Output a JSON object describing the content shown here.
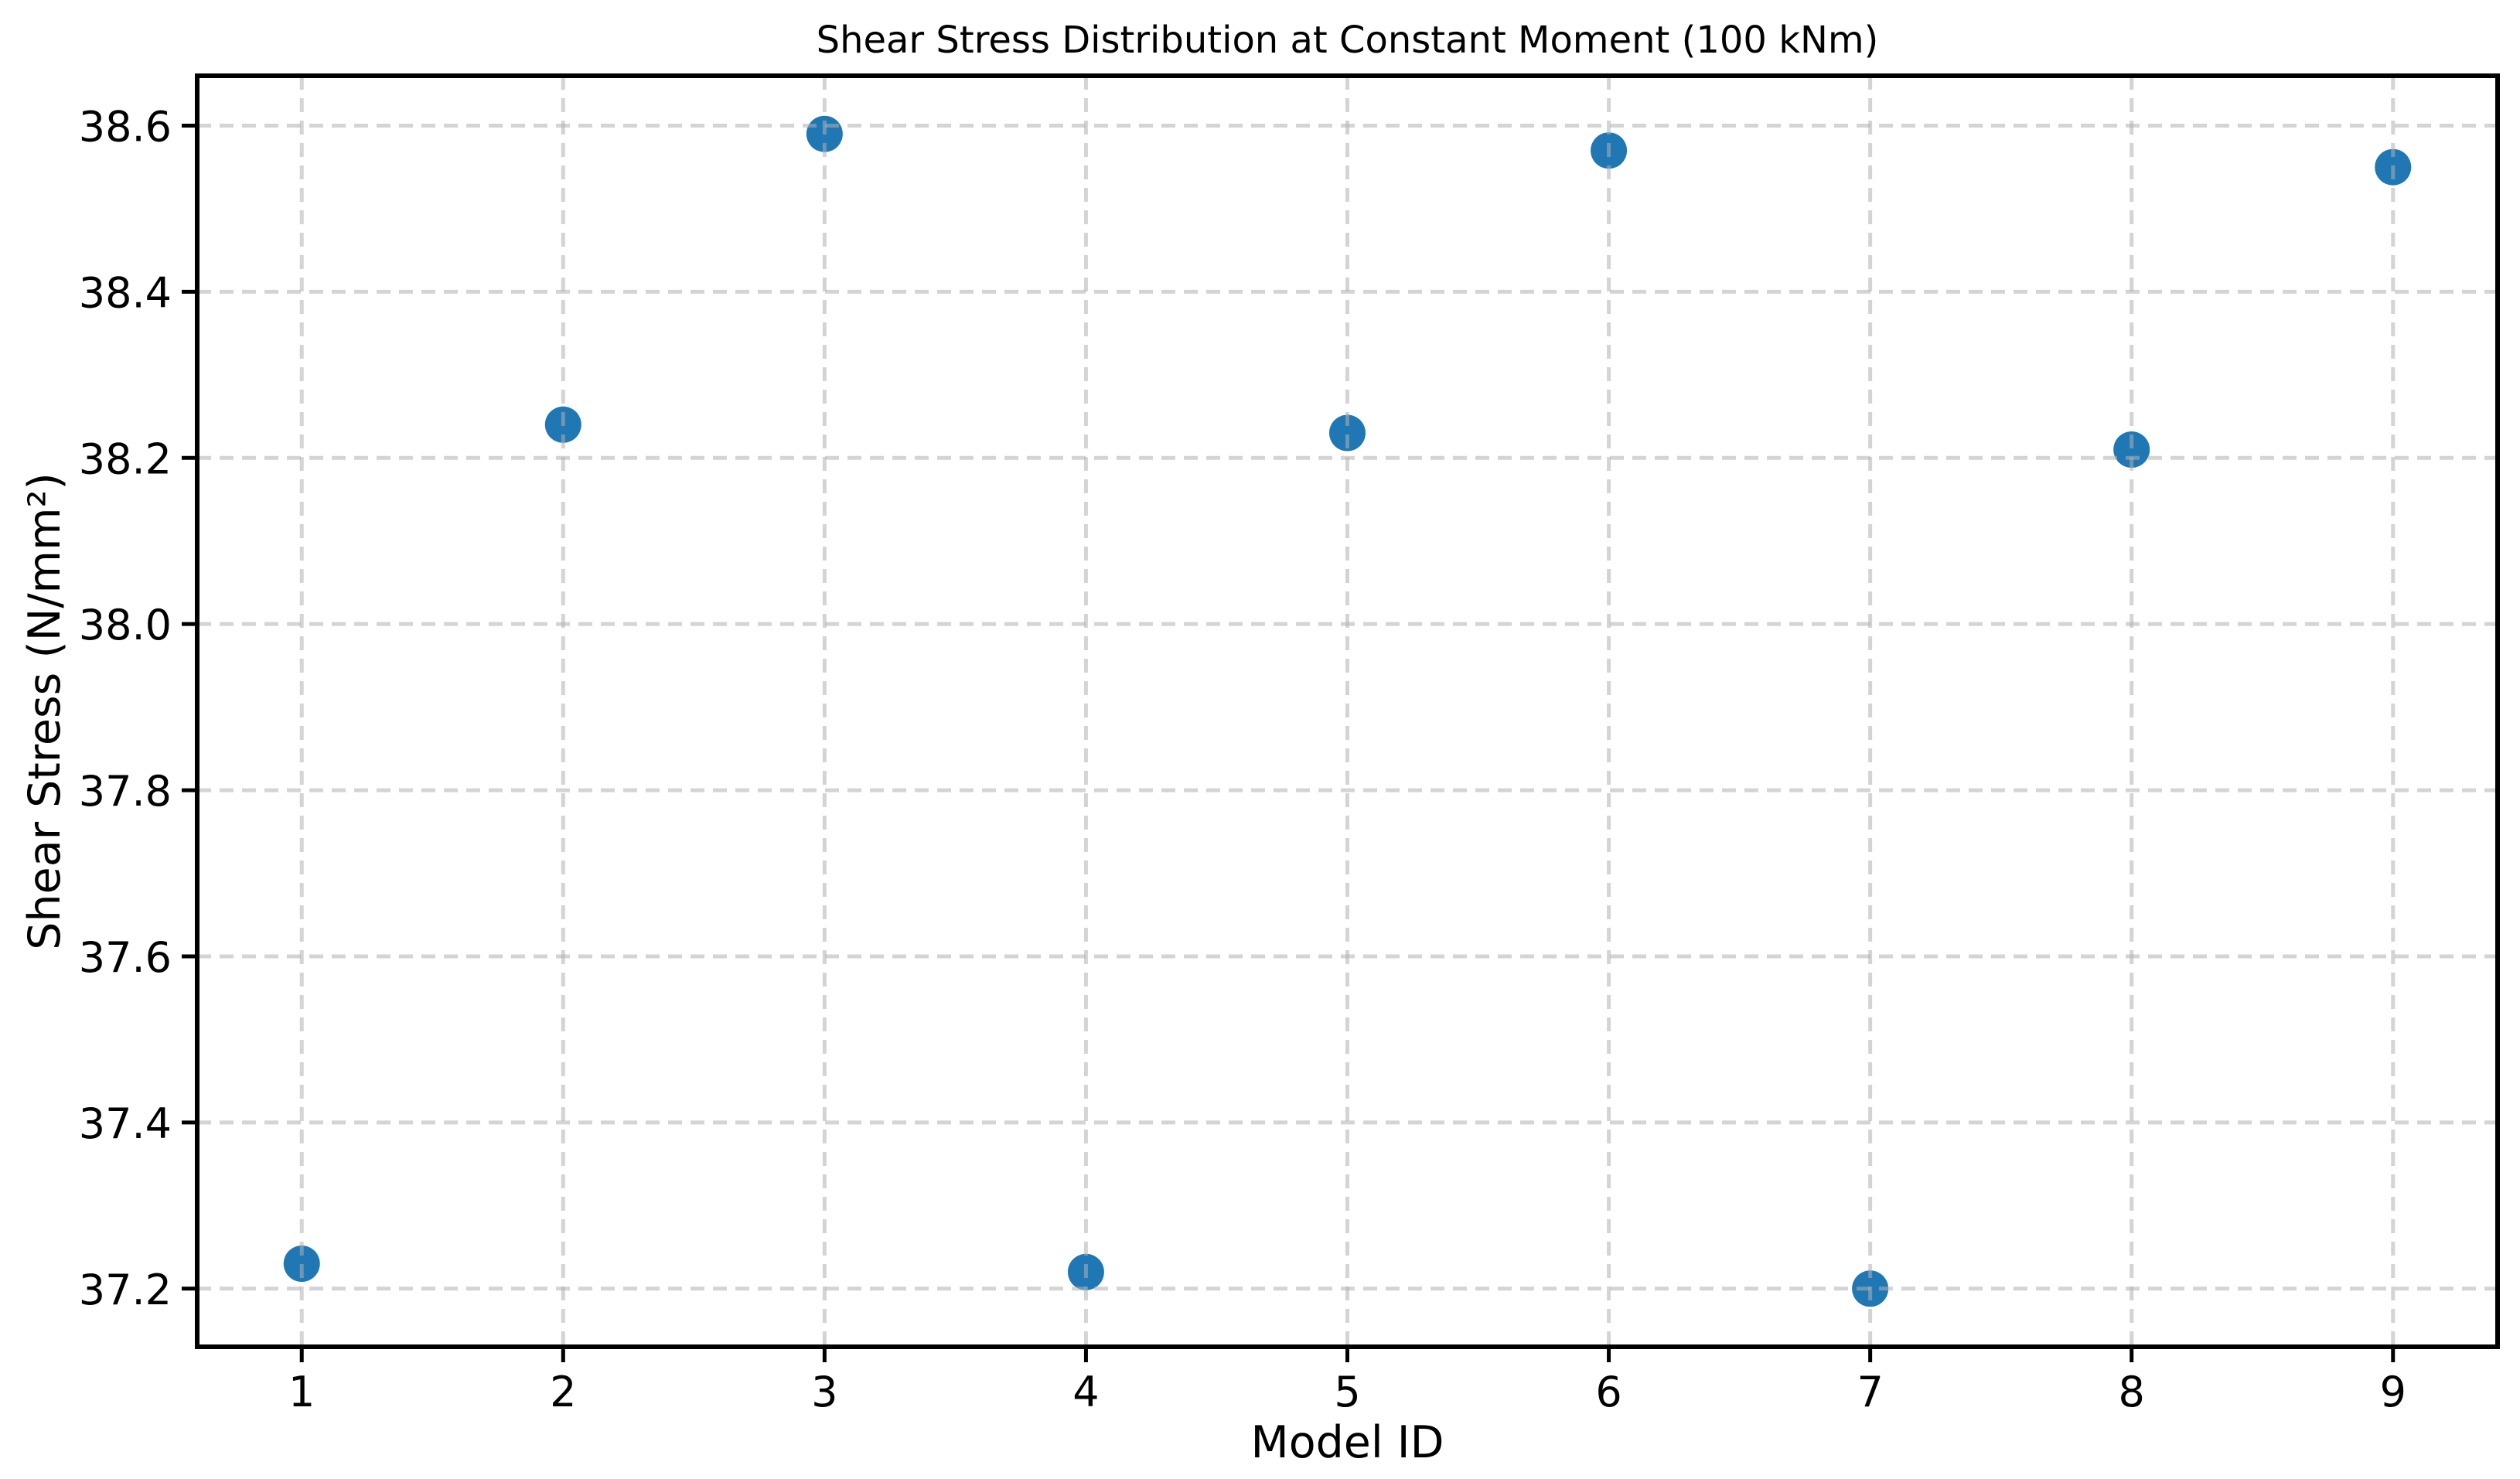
{
  "chart_data": {
    "type": "scatter",
    "title": "Shear Stress Distribution at Constant Moment (100 kNm)",
    "xlabel": "Model ID",
    "ylabel": "Shear Stress (N/mm²)",
    "series": [
      {
        "name": "Shear Stress",
        "x": [
          1,
          2,
          3,
          4,
          5,
          6,
          7,
          8,
          9
        ],
        "y": [
          37.23,
          38.24,
          38.59,
          37.22,
          38.23,
          38.57,
          37.2,
          38.21,
          38.55
        ]
      }
    ],
    "xlim": [
      0.6,
      9.4
    ],
    "ylim": [
      37.13,
      38.66
    ],
    "xticks": [
      1,
      2,
      3,
      4,
      5,
      6,
      7,
      8,
      9
    ],
    "yticks": [
      37.2,
      37.4,
      37.6,
      37.8,
      38.0,
      38.2,
      38.4,
      38.6
    ],
    "ytick_decimals": 1,
    "grid": true,
    "grid_linestyle": "dashed",
    "legend_position": "none",
    "marker_color": "#1f77b4",
    "grid_color": "#b0b0b0",
    "axis_color": "#000000",
    "background_color": "#ffffff"
  }
}
